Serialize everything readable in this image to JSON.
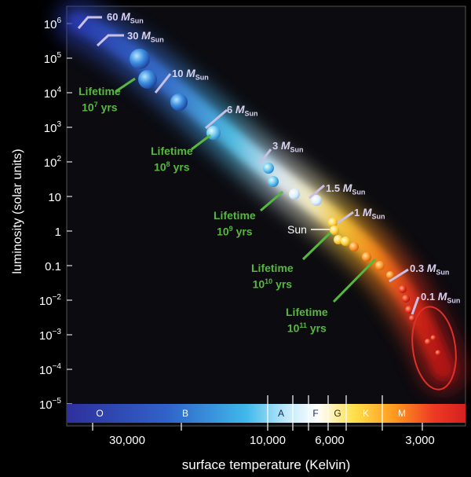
{
  "axes": {
    "y_title": "luminosity (solar units)",
    "x_title": "surface temperature (Kelvin)",
    "y_ticks": [
      {
        "base": "10",
        "exp": "6"
      },
      {
        "base": "10",
        "exp": "5"
      },
      {
        "base": "10",
        "exp": "4"
      },
      {
        "base": "10",
        "exp": "3"
      },
      {
        "base": "10",
        "exp": "2"
      },
      {
        "base": "10",
        "exp": ""
      },
      {
        "base": "1",
        "exp": ""
      },
      {
        "base": "0.1",
        "exp": ""
      },
      {
        "base": "10",
        "exp": "−2"
      },
      {
        "base": "10",
        "exp": "−3"
      },
      {
        "base": "10",
        "exp": "−4"
      },
      {
        "base": "10",
        "exp": "−5"
      }
    ],
    "x_ticks": [
      "30,000",
      "10,000",
      "6,000",
      "3,000"
    ]
  },
  "spectral_classes": [
    "O",
    "B",
    "A",
    "F",
    "G",
    "K",
    "M"
  ],
  "mass_labels": [
    {
      "value": "60",
      "unit": "M",
      "sub": "Sun"
    },
    {
      "value": "30",
      "unit": "M",
      "sub": "Sun"
    },
    {
      "value": "10",
      "unit": "M",
      "sub": "Sun"
    },
    {
      "value": "6",
      "unit": "M",
      "sub": "Sun"
    },
    {
      "value": "3",
      "unit": "M",
      "sub": "Sun"
    },
    {
      "value": "1.5",
      "unit": "M",
      "sub": "Sun"
    },
    {
      "value": "1",
      "unit": "M",
      "sub": "Sun"
    },
    {
      "value": "0.3",
      "unit": "M",
      "sub": "Sun"
    },
    {
      "value": "0.1",
      "unit": "M",
      "sub": "Sun"
    }
  ],
  "lifetimes": [
    {
      "word": "Lifetime",
      "base": "10",
      "exp": "7",
      "unit": "yrs"
    },
    {
      "word": "Lifetime",
      "base": "10",
      "exp": "8",
      "unit": "yrs"
    },
    {
      "word": "Lifetime",
      "base": "10",
      "exp": "9",
      "unit": "yrs"
    },
    {
      "word": "Lifetime",
      "base": "10",
      "exp": "10",
      "unit": "yrs"
    },
    {
      "word": "Lifetime",
      "base": "10",
      "exp": "11",
      "unit": "yrs"
    }
  ],
  "sun_label": "Sun",
  "colors": {
    "lifetime_text": "#57b83f",
    "mass_text": "#d9d2ef",
    "highlight_ring": "#e0302a"
  }
}
